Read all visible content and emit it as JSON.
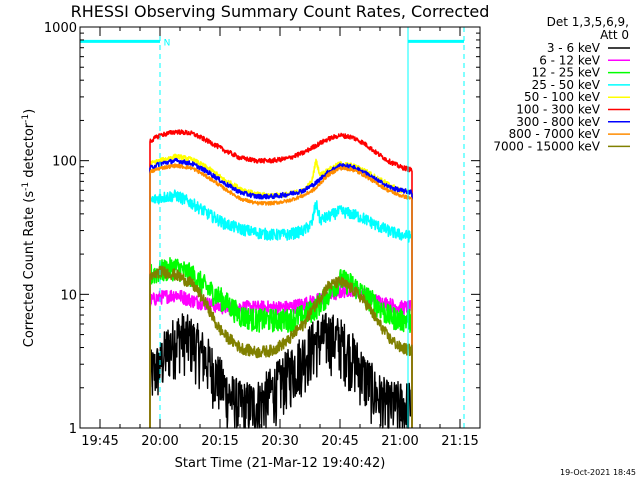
{
  "chart_data": {
    "type": "line",
    "title": "RHESSI Observing Summary Count Rates, Corrected",
    "xlabel": "Start Time (21-Mar-12 19:40:42)",
    "ylabel_main": "Corrected Count Rate (s",
    "ylabel_exp1": "-1",
    "ylabel_mid": " detector",
    "ylabel_exp2": "-1",
    "ylabel_end": ")",
    "yscale": "log",
    "ylim": [
      1,
      1000
    ],
    "xlim_minutes_after_1940": [
      0,
      100
    ],
    "x_ticks": [
      {
        "label": "19:45",
        "min": 5
      },
      {
        "label": "20:00",
        "min": 20
      },
      {
        "label": "20:15",
        "min": 35
      },
      {
        "label": "20:30",
        "min": 50
      },
      {
        "label": "20:45",
        "min": 65
      },
      {
        "label": "21:00",
        "min": 80
      },
      {
        "label": "21:15",
        "min": 95
      }
    ],
    "y_ticks": [
      {
        "label": "1",
        "value": 1
      },
      {
        "label": "10",
        "value": 10
      },
      {
        "label": "100",
        "value": 100
      },
      {
        "label": "1000",
        "value": 1000
      }
    ],
    "legend_header": [
      "Det 1,3,5,6,9,",
      "Att 0"
    ],
    "series": [
      {
        "name": "3 - 6 keV",
        "color": "#000000",
        "noise": 0.5,
        "x": [
          17.5,
          20,
          22,
          25,
          28,
          31,
          34,
          37,
          40,
          44,
          47,
          50,
          53,
          56,
          59,
          62,
          65,
          68,
          71,
          74,
          77,
          80,
          83
        ],
        "values": [
          2.5,
          3,
          4,
          5,
          4.5,
          3.5,
          2.5,
          1.8,
          1.5,
          1.5,
          1.8,
          2.2,
          2.8,
          3.5,
          4.5,
          5,
          4.5,
          3.5,
          2.5,
          1.8,
          1.5,
          1.5,
          1.5
        ]
      },
      {
        "name": "6 - 12 keV",
        "color": "#ff00ff",
        "noise": 0.12,
        "x": [
          17.5,
          20,
          24,
          28,
          32,
          36,
          40,
          44,
          48,
          52,
          56,
          59,
          62,
          65,
          68,
          71,
          74,
          77,
          80,
          83
        ],
        "values": [
          9,
          9.5,
          10,
          9,
          8.5,
          8,
          8,
          8,
          8,
          8,
          8.5,
          9,
          9.5,
          10.5,
          11,
          10,
          9,
          8.5,
          8,
          8
        ]
      },
      {
        "name": "12 - 25 keV",
        "color": "#00ff00",
        "noise": 0.2,
        "x": [
          17.5,
          20,
          24,
          28,
          32,
          36,
          40,
          44,
          48,
          52,
          56,
          59,
          62,
          65,
          68,
          71,
          74,
          77,
          80,
          83
        ],
        "values": [
          14,
          15,
          16,
          14,
          11,
          9,
          7,
          6.5,
          6.5,
          6.5,
          7,
          8,
          10,
          13,
          12,
          10,
          8.5,
          7,
          6.5,
          6.5
        ]
      },
      {
        "name": "25 - 50 keV",
        "color": "#00ffff",
        "noise": 0.1,
        "x": [
          17.5,
          20,
          24,
          28,
          32,
          36,
          40,
          44,
          48,
          52,
          56,
          58,
          59,
          60,
          62,
          65,
          68,
          71,
          74,
          77,
          80,
          83
        ],
        "values": [
          50,
          53,
          55,
          48,
          40,
          34,
          31,
          29,
          28,
          28,
          30,
          34,
          48,
          36,
          38,
          42,
          40,
          37,
          33,
          30,
          28,
          27
        ]
      },
      {
        "name": "50 - 100 keV",
        "color": "#ffff00",
        "noise": 0.04,
        "x": [
          17.5,
          20,
          24,
          28,
          32,
          36,
          40,
          44,
          48,
          52,
          56,
          58,
          59,
          60,
          62,
          65,
          68,
          71,
          74,
          77,
          80,
          83
        ],
        "values": [
          95,
          100,
          108,
          102,
          88,
          72,
          62,
          56,
          55,
          56,
          60,
          70,
          100,
          78,
          85,
          95,
          92,
          85,
          75,
          67,
          60,
          58
        ]
      },
      {
        "name": "100 - 300 keV",
        "color": "#ff0000",
        "noise": 0.04,
        "x": [
          17.5,
          20,
          24,
          28,
          32,
          36,
          40,
          44,
          48,
          52,
          56,
          59,
          62,
          65,
          68,
          71,
          74,
          77,
          80,
          83
        ],
        "values": [
          140,
          155,
          165,
          160,
          140,
          120,
          105,
          100,
          100,
          104,
          115,
          130,
          145,
          155,
          150,
          135,
          115,
          100,
          90,
          85
        ]
      },
      {
        "name": "300 - 800 keV",
        "color": "#0000ff",
        "noise": 0.04,
        "x": [
          17.5,
          20,
          24,
          28,
          32,
          36,
          40,
          44,
          48,
          52,
          56,
          59,
          62,
          65,
          68,
          71,
          74,
          77,
          80,
          83
        ],
        "values": [
          88,
          95,
          100,
          95,
          82,
          68,
          58,
          54,
          54,
          56,
          60,
          68,
          82,
          92,
          90,
          82,
          72,
          64,
          60,
          58
        ]
      },
      {
        "name": "800 - 7000 keV",
        "color": "#ff8c00",
        "noise": 0.03,
        "x": [
          17.5,
          20,
          24,
          28,
          32,
          36,
          40,
          44,
          48,
          52,
          56,
          59,
          62,
          65,
          68,
          71,
          74,
          77,
          80,
          83
        ],
        "values": [
          82,
          88,
          92,
          88,
          75,
          62,
          52,
          48,
          48,
          50,
          55,
          62,
          78,
          88,
          86,
          78,
          68,
          60,
          55,
          52
        ]
      },
      {
        "name": "7000 - 15000 keV",
        "color": "#808000",
        "noise": 0.1,
        "x": [
          17.5,
          20,
          24,
          28,
          30,
          32,
          34,
          36,
          40,
          44,
          48,
          52,
          56,
          59,
          62,
          65,
          68,
          71,
          74,
          77,
          80,
          83
        ],
        "values": [
          13,
          15,
          14,
          12,
          10,
          8,
          6,
          5,
          4,
          3.7,
          3.8,
          4.5,
          6,
          8.5,
          11.5,
          12.5,
          11,
          9,
          6.5,
          4.8,
          4,
          3.8
        ]
      }
    ],
    "annotations": {
      "night_bar_1": {
        "from_min": 0,
        "to_min": 20,
        "value": 780,
        "label": "N"
      },
      "night_bar_2": {
        "from_min": 82,
        "to_min": 96,
        "value": 780
      },
      "vertical_lines_solid_min": [
        0,
        82
      ],
      "vertical_lines_dashed_min": [
        20,
        96
      ]
    }
  },
  "footer": {
    "timestamp": "19-Oct-2021 18:45"
  }
}
